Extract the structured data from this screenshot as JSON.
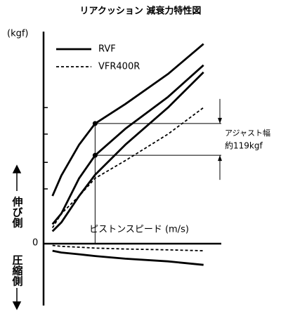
{
  "chart_data": {
    "type": "line",
    "title": "リアクッション 減衰力特性図",
    "y_label": "(kgf)",
    "x_label": "ピストンスピード (m/s)",
    "origin_label": "0",
    "extension_label": "伸び側",
    "compression_label": "圧縮側",
    "annotation": [
      "アジャスト幅",
      "約119kgf"
    ],
    "x": [
      5,
      10,
      20,
      29,
      46,
      70,
      90
    ],
    "xlim": [
      0,
      100
    ],
    "ylim": [
      -35,
      120
    ],
    "tick_marks": [
      77,
      62,
      46,
      31
    ],
    "series": [
      {
        "name": "RVF",
        "color": "#000000",
        "dashed": false,
        "curves": [
          [
            27,
            38.5,
            56,
            68,
            79,
            96,
            113
          ],
          [
            11,
            17,
            37,
            50,
            65,
            83,
            101
          ],
          [
            7,
            12,
            27,
            39,
            56,
            77,
            97
          ],
          [
            -4,
            -5,
            -6,
            -7,
            -8.5,
            -10,
            -12
          ]
        ]
      },
      {
        "name": "VFR400R",
        "color": "#000000",
        "dashed": true,
        "curves": [
          [
            9,
            17,
            27,
            37,
            47,
            62,
            77
          ],
          [
            -1,
            -1.5,
            -2,
            -2.5,
            -3,
            -3.5,
            -4
          ]
        ]
      }
    ],
    "adjust_points": {
      "x_index": 3,
      "curves": [
        0,
        1
      ]
    }
  }
}
